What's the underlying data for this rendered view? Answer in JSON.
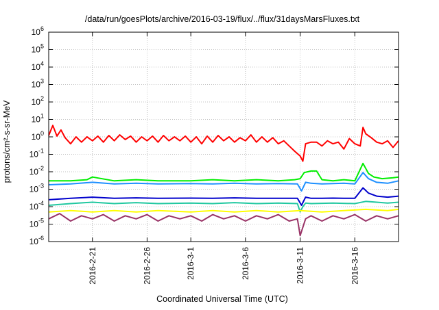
{
  "chart_data": {
    "type": "line",
    "title": "/data/run/goesPlots/archive/2016-03-19/flux/../flux/31daysMarsFluxes.txt",
    "xlabel": "Coordinated Universal Time (UTC)",
    "ylabel": "protons/cm²-s-sr-MeV",
    "y_scale": "log",
    "ylim": [
      1e-06,
      1000000.0
    ],
    "xlim": [
      "2016-02-17",
      "2016-03-20"
    ],
    "grid": true,
    "legend": "none",
    "y_ticks": [
      {
        "base": "10",
        "exp": "-6",
        "value": 1e-06
      },
      {
        "base": "10",
        "exp": "-5",
        "value": 1e-05
      },
      {
        "base": "10",
        "exp": "-4",
        "value": 0.0001
      },
      {
        "base": "10",
        "exp": "-3",
        "value": 0.001
      },
      {
        "base": "10",
        "exp": "-2",
        "value": 0.01
      },
      {
        "base": "10",
        "exp": "-1",
        "value": 0.1
      },
      {
        "base": "10",
        "exp": "0",
        "value": 1
      },
      {
        "base": "10",
        "exp": "1",
        "value": 10
      },
      {
        "base": "10",
        "exp": "2",
        "value": 100
      },
      {
        "base": "10",
        "exp": "3",
        "value": 1000
      },
      {
        "base": "10",
        "exp": "4",
        "value": 10000
      },
      {
        "base": "10",
        "exp": "5",
        "value": 100000
      },
      {
        "base": "10",
        "exp": "6",
        "value": 1000000
      }
    ],
    "x_ticks": [
      {
        "date": "2016-02-21",
        "label": "2016-2-21"
      },
      {
        "date": "2016-02-26",
        "label": "2016-2-26"
      },
      {
        "date": "2016-03-01",
        "label": "2016-3-1"
      },
      {
        "date": "2016-03-06",
        "label": "2016-3-6"
      },
      {
        "date": "2016-03-11",
        "label": "2016-3-11"
      },
      {
        "date": "2016-03-16",
        "label": "2016-3-16"
      }
    ],
    "series": [
      {
        "color": "#ff0000",
        "x": [
          "2016-02-17T00:00",
          "2016-02-17T09:00",
          "2016-02-17T18:00",
          "2016-02-18T03:00",
          "2016-02-18T12:00",
          "2016-02-19T00:00",
          "2016-02-19T12:00",
          "2016-02-20T00:00",
          "2016-02-20T12:00",
          "2016-02-21T00:00",
          "2016-02-21T12:00",
          "2016-02-22T00:00",
          "2016-02-22T12:00",
          "2016-02-23T00:00",
          "2016-02-23T12:00",
          "2016-02-24T00:00",
          "2016-02-24T12:00",
          "2016-02-25T00:00",
          "2016-02-25T12:00",
          "2016-02-26T00:00",
          "2016-02-26T12:00",
          "2016-02-27T00:00",
          "2016-02-27T12:00",
          "2016-02-28T00:00",
          "2016-02-28T12:00",
          "2016-02-29T00:00",
          "2016-02-29T12:00",
          "2016-03-01T00:00",
          "2016-03-01T12:00",
          "2016-03-02T00:00",
          "2016-03-02T12:00",
          "2016-03-03T00:00",
          "2016-03-03T12:00",
          "2016-03-04T00:00",
          "2016-03-04T12:00",
          "2016-03-05T00:00",
          "2016-03-05T12:00",
          "2016-03-06T00:00",
          "2016-03-06T12:00",
          "2016-03-07T00:00",
          "2016-03-07T12:00",
          "2016-03-08T00:00",
          "2016-03-08T12:00",
          "2016-03-09T00:00",
          "2016-03-09T12:00",
          "2016-03-10T00:00",
          "2016-03-10T12:00",
          "2016-03-11T00:00",
          "2016-03-11T06:00",
          "2016-03-11T12:00",
          "2016-03-12T00:00",
          "2016-03-12T12:00",
          "2016-03-13T00:00",
          "2016-03-13T12:00",
          "2016-03-14T00:00",
          "2016-03-14T12:00",
          "2016-03-15T00:00",
          "2016-03-15T12:00",
          "2016-03-16T00:00",
          "2016-03-16T12:00",
          "2016-03-16T18:00",
          "2016-03-17T00:00",
          "2016-03-17T12:00",
          "2016-03-18T00:00",
          "2016-03-18T12:00",
          "2016-03-19T00:00",
          "2016-03-19T12:00",
          "2016-03-20T00:00"
        ],
        "y": [
          1.2,
          4.5,
          1.1,
          2.5,
          0.9,
          0.4,
          1.0,
          0.5,
          1.0,
          0.6,
          1.1,
          0.5,
          1.2,
          0.6,
          1.3,
          0.7,
          1.1,
          0.5,
          1.0,
          0.6,
          1.1,
          0.5,
          1.2,
          0.6,
          1.0,
          0.6,
          1.1,
          0.5,
          1.0,
          0.4,
          1.1,
          0.5,
          1.2,
          0.6,
          1.0,
          0.5,
          0.9,
          0.6,
          1.3,
          0.5,
          1.0,
          0.5,
          0.9,
          0.4,
          0.6,
          0.3,
          0.15,
          0.08,
          0.04,
          0.4,
          0.5,
          0.5,
          0.3,
          0.6,
          0.4,
          0.5,
          0.2,
          0.8,
          0.4,
          0.3,
          3.5,
          1.5,
          0.9,
          0.5,
          0.4,
          0.6,
          0.25,
          0.6
        ]
      },
      {
        "color": "#00ee00",
        "x": [
          "2016-02-17T00:00",
          "2016-02-19T00:00",
          "2016-02-20T12:00",
          "2016-02-21T00:00",
          "2016-02-23T00:00",
          "2016-02-25T00:00",
          "2016-02-27T00:00",
          "2016-03-01T00:00",
          "2016-03-03T00:00",
          "2016-03-05T00:00",
          "2016-03-07T00:00",
          "2016-03-09T00:00",
          "2016-03-10T12:00",
          "2016-03-11T00:00",
          "2016-03-11T09:00",
          "2016-03-12T00:00",
          "2016-03-12T12:00",
          "2016-03-13T00:00",
          "2016-03-14T00:00",
          "2016-03-15T00:00",
          "2016-03-16T00:00",
          "2016-03-16T18:00",
          "2016-03-17T06:00",
          "2016-03-17T18:00",
          "2016-03-18T12:00",
          "2016-03-19T12:00",
          "2016-03-20T00:00"
        ],
        "y": [
          0.003,
          0.003,
          0.0035,
          0.005,
          0.003,
          0.0035,
          0.003,
          0.003,
          0.0035,
          0.003,
          0.0035,
          0.003,
          0.0035,
          0.004,
          0.009,
          0.011,
          0.011,
          0.0035,
          0.003,
          0.0035,
          0.003,
          0.03,
          0.008,
          0.005,
          0.004,
          0.0045,
          0.005
        ]
      },
      {
        "color": "#1e90ff",
        "x": [
          "2016-02-17T00:00",
          "2016-02-19T00:00",
          "2016-02-21T00:00",
          "2016-02-23T00:00",
          "2016-02-25T00:00",
          "2016-02-27T00:00",
          "2016-03-01T00:00",
          "2016-03-03T00:00",
          "2016-03-05T00:00",
          "2016-03-07T00:00",
          "2016-03-09T00:00",
          "2016-03-10T18:00",
          "2016-03-11T03:00",
          "2016-03-11T12:00",
          "2016-03-12T00:00",
          "2016-03-13T00:00",
          "2016-03-14T00:00",
          "2016-03-15T00:00",
          "2016-03-16T00:00",
          "2016-03-16T18:00",
          "2016-03-17T06:00",
          "2016-03-18T00:00",
          "2016-03-19T00:00",
          "2016-03-20T00:00"
        ],
        "y": [
          0.0018,
          0.002,
          0.0025,
          0.002,
          0.0022,
          0.002,
          0.0021,
          0.002,
          0.0022,
          0.002,
          0.0021,
          0.002,
          0.0008,
          0.0025,
          0.0022,
          0.002,
          0.0021,
          0.0022,
          0.002,
          0.009,
          0.004,
          0.0025,
          0.0022,
          0.003
        ]
      },
      {
        "color": "#0000cc",
        "x": [
          "2016-02-17T00:00",
          "2016-02-19T00:00",
          "2016-02-21T00:00",
          "2016-02-23T00:00",
          "2016-02-25T00:00",
          "2016-02-27T00:00",
          "2016-03-01T00:00",
          "2016-03-03T00:00",
          "2016-03-05T00:00",
          "2016-03-07T00:00",
          "2016-03-09T00:00",
          "2016-03-10T18:00",
          "2016-03-11T03:00",
          "2016-03-11T12:00",
          "2016-03-12T00:00",
          "2016-03-13T00:00",
          "2016-03-14T00:00",
          "2016-03-15T00:00",
          "2016-03-16T00:00",
          "2016-03-16T18:00",
          "2016-03-17T06:00",
          "2016-03-18T00:00",
          "2016-03-19T00:00",
          "2016-03-20T00:00"
        ],
        "y": [
          0.00025,
          0.0003,
          0.00035,
          0.0003,
          0.00032,
          0.0003,
          0.00031,
          0.0003,
          0.00032,
          0.0003,
          0.0003,
          0.0003,
          0.00012,
          0.00035,
          0.0003,
          0.0003,
          0.00031,
          0.0003,
          0.0003,
          0.0012,
          0.0006,
          0.0004,
          0.00035,
          0.0004
        ]
      },
      {
        "color": "#20c8a0",
        "x": [
          "2016-02-17T00:00",
          "2016-02-19T00:00",
          "2016-02-21T00:00",
          "2016-02-23T00:00",
          "2016-02-25T00:00",
          "2016-02-27T00:00",
          "2016-03-01T00:00",
          "2016-03-03T00:00",
          "2016-03-05T00:00",
          "2016-03-07T00:00",
          "2016-03-09T00:00",
          "2016-03-10T18:00",
          "2016-03-11T00:00",
          "2016-03-11T06:00",
          "2016-03-11T12:00",
          "2016-03-12T00:00",
          "2016-03-14T00:00",
          "2016-03-16T00:00",
          "2016-03-17T00:00",
          "2016-03-18T00:00",
          "2016-03-19T00:00",
          "2016-03-20T00:00"
        ],
        "y": [
          0.00012,
          0.00015,
          0.00018,
          0.00015,
          0.00017,
          0.00015,
          0.00016,
          0.00015,
          0.00017,
          0.00015,
          0.00016,
          0.00015,
          5e-05,
          0.0001,
          0.00016,
          0.00015,
          0.00016,
          0.00015,
          0.0002,
          0.00018,
          0.00016,
          0.00018
        ]
      },
      {
        "color": "#ffff00",
        "x": [
          "2016-02-17T00:00",
          "2016-02-19T00:00",
          "2016-02-21T00:00",
          "2016-02-23T00:00",
          "2016-02-25T00:00",
          "2016-02-27T00:00",
          "2016-03-01T00:00",
          "2016-03-03T00:00",
          "2016-03-05T00:00",
          "2016-03-07T00:00",
          "2016-03-09T00:00",
          "2016-03-11T00:00",
          "2016-03-13T00:00",
          "2016-03-15T00:00",
          "2016-03-17T00:00",
          "2016-03-19T00:00",
          "2016-03-20T00:00"
        ],
        "y": [
          5e-05,
          6e-05,
          5e-05,
          6e-05,
          5e-05,
          6e-05,
          5e-05,
          6e-05,
          5e-05,
          6e-05,
          5e-05,
          6e-05,
          5e-05,
          6e-05,
          7e-05,
          6e-05,
          7e-05
        ]
      },
      {
        "color": "#993366",
        "x": [
          "2016-02-17T00:00",
          "2016-02-18T00:00",
          "2016-02-19T00:00",
          "2016-02-20T00:00",
          "2016-02-21T00:00",
          "2016-02-22T00:00",
          "2016-02-23T00:00",
          "2016-02-24T00:00",
          "2016-02-25T00:00",
          "2016-02-26T00:00",
          "2016-02-27T00:00",
          "2016-02-28T00:00",
          "2016-02-29T00:00",
          "2016-03-01T00:00",
          "2016-03-02T00:00",
          "2016-03-03T00:00",
          "2016-03-04T00:00",
          "2016-03-05T00:00",
          "2016-03-06T00:00",
          "2016-03-07T00:00",
          "2016-03-08T00:00",
          "2016-03-09T00:00",
          "2016-03-10T00:00",
          "2016-03-10T18:00",
          "2016-03-11T00:00",
          "2016-03-11T12:00",
          "2016-03-12T00:00",
          "2016-03-13T00:00",
          "2016-03-14T00:00",
          "2016-03-15T00:00",
          "2016-03-16T00:00",
          "2016-03-17T00:00",
          "2016-03-18T00:00",
          "2016-03-19T00:00",
          "2016-03-20T00:00"
        ],
        "y": [
          2e-05,
          4e-05,
          1.5e-05,
          3e-05,
          2e-05,
          3.5e-05,
          1.5e-05,
          3e-05,
          2e-05,
          3.5e-05,
          1.5e-05,
          3e-05,
          2e-05,
          3e-05,
          1.5e-05,
          3.5e-05,
          2e-05,
          3e-05,
          1.5e-05,
          3e-05,
          2e-05,
          3.5e-05,
          1.5e-05,
          2e-05,
          2.2e-06,
          2e-05,
          3e-05,
          1.5e-05,
          3e-05,
          2e-05,
          3.5e-05,
          1.5e-05,
          3e-05,
          2e-05,
          3e-05
        ]
      }
    ]
  }
}
